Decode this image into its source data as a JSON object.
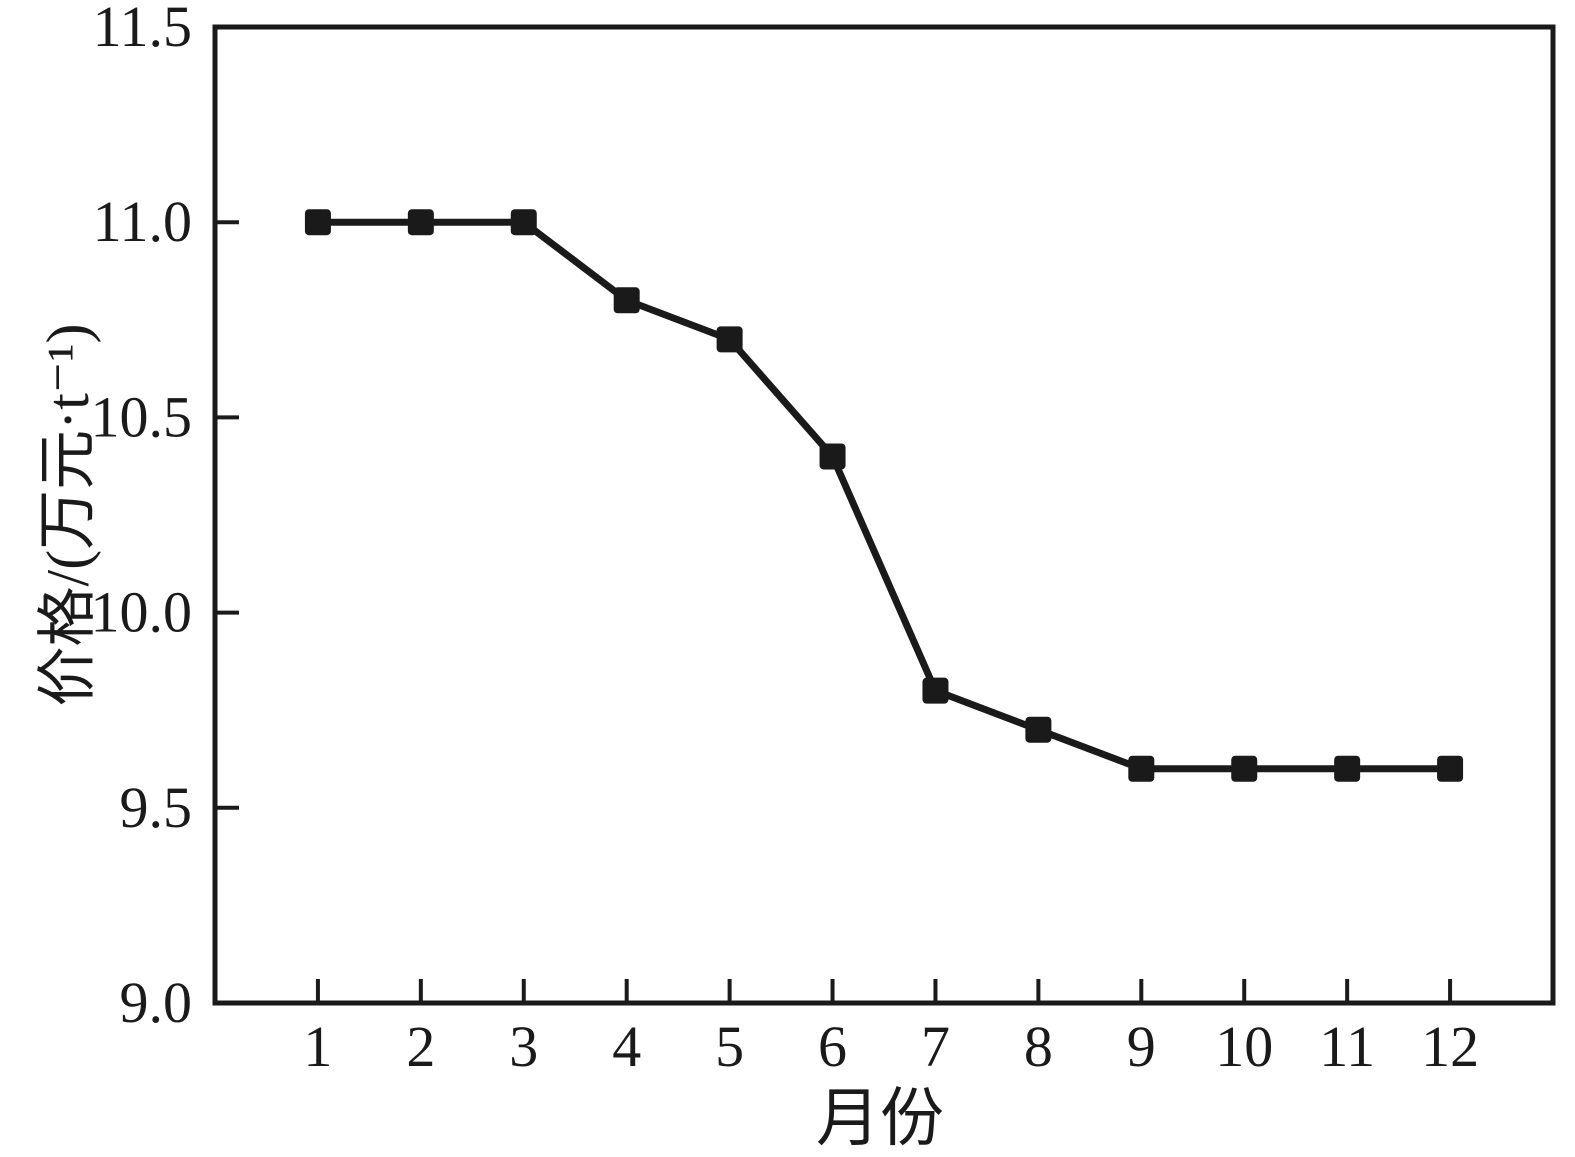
{
  "figure": {
    "background": "#ffffff",
    "ink_color": "#1a1a1a"
  },
  "chart_data": {
    "type": "line",
    "title": "",
    "xlabel": "月份",
    "ylabel": "价格/(万元·t⁻¹)",
    "x": [
      1,
      2,
      3,
      4,
      5,
      6,
      7,
      8,
      9,
      10,
      11,
      12
    ],
    "values": [
      11.0,
      11.0,
      11.0,
      10.8,
      10.7,
      10.4,
      9.8,
      9.7,
      9.6,
      9.6,
      9.6,
      9.6
    ],
    "xlim": [
      0,
      13
    ],
    "ylim": [
      9.0,
      11.5
    ],
    "xticks": [
      1,
      2,
      3,
      4,
      5,
      6,
      7,
      8,
      9,
      10,
      11,
      12
    ],
    "xtick_labels": [
      "1",
      "2",
      "3",
      "4",
      "5",
      "6",
      "7",
      "8",
      "9",
      "10",
      "11",
      "12"
    ],
    "yticks": [
      9.0,
      9.5,
      10.0,
      10.5,
      11.0,
      11.5
    ],
    "ytick_labels": [
      "9.0",
      "9.5",
      "10.0",
      "10.5",
      "11.0",
      "11.5"
    ],
    "grid": false,
    "legend_position": "none",
    "marker": "filled-square",
    "line_color": "#1a1a1a",
    "marker_color": "#1a1a1a"
  }
}
